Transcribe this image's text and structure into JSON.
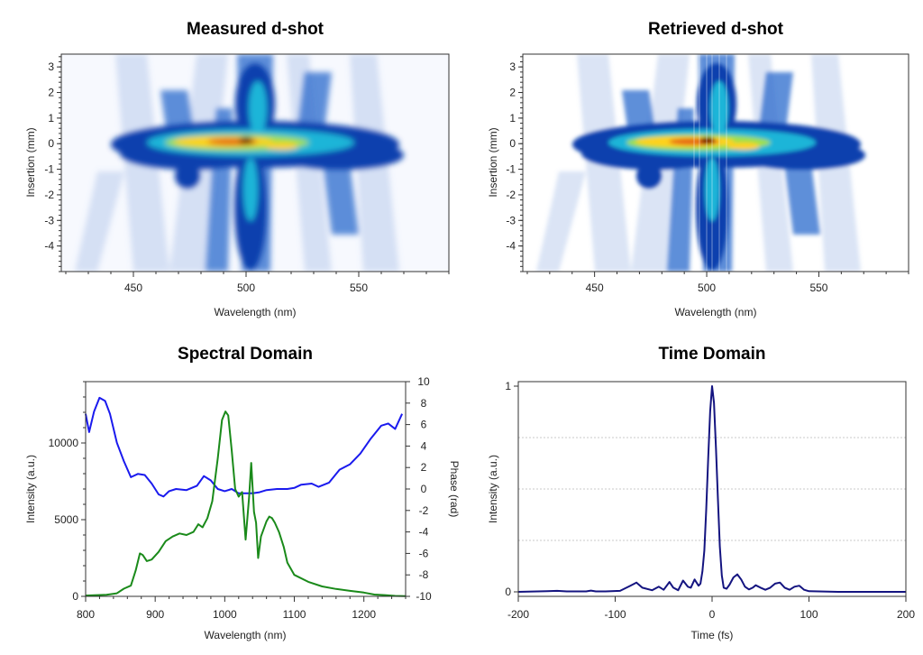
{
  "colors": {
    "retrieved_series": "#1a1aee",
    "measured_series": "#1a8a1a",
    "time_series": "#141480",
    "grid": "#c8c8c8",
    "heat_low": "#ffffff",
    "heat_mid": "#0a4db8",
    "heat_high": "#7a0000"
  },
  "chart_data": [
    {
      "id": "measured",
      "type": "heatmap",
      "title": "Measured d-shot",
      "xlabel": "Wavelength (nm)",
      "ylabel": "Insertion (mm)",
      "xlim": [
        418,
        590
      ],
      "ylim": [
        -5,
        3.5
      ],
      "xticks": [
        450,
        500,
        550
      ],
      "yticks": [
        -4,
        -3,
        -2,
        -1,
        0,
        1,
        2,
        3
      ],
      "colormap": "white-blue-cyan-yellow-red",
      "peak": {
        "x": 501,
        "y": 0.05
      }
    },
    {
      "id": "retrieved",
      "type": "heatmap",
      "title": "Retrieved d-shot",
      "xlabel": "Wavelength (nm)",
      "ylabel": "Insertion (mm)",
      "xlim": [
        418,
        590
      ],
      "ylim": [
        -5,
        3.5
      ],
      "xticks": [
        450,
        500,
        550
      ],
      "yticks": [
        -4,
        -3,
        -2,
        -1,
        0,
        1,
        2,
        3
      ],
      "colormap": "white-blue-cyan-yellow-red",
      "peak": {
        "x": 500,
        "y": 0.05
      }
    },
    {
      "id": "spectral",
      "type": "line",
      "title": "Spectral Domain",
      "xlabel": "Wavelength (nm)",
      "ylabel": "Intensity (a.u.)",
      "y2label": "Phase (rad)",
      "xlim": [
        800,
        1260
      ],
      "ylim": [
        0,
        14000
      ],
      "y2lim": [
        -10,
        10
      ],
      "xticks": [
        800,
        900,
        1000,
        1100,
        1200
      ],
      "yticks": [
        0,
        5000,
        10000
      ],
      "y2ticks": [
        -10,
        -8,
        -6,
        -4,
        -2,
        0,
        2,
        4,
        6,
        8,
        10
      ],
      "series": [
        {
          "name": "Phase",
          "axis": "right",
          "color_key": "retrieved_series",
          "x": [
            800,
            805,
            812,
            820,
            828,
            835,
            845,
            855,
            865,
            875,
            885,
            895,
            905,
            912,
            920,
            930,
            945,
            960,
            970,
            980,
            990,
            1000,
            1010,
            1020,
            1030,
            1040,
            1050,
            1060,
            1075,
            1090,
            1100,
            1110,
            1125,
            1135,
            1150,
            1165,
            1180,
            1195,
            1210,
            1225,
            1235,
            1245,
            1255
          ],
          "values": [
            7.0,
            5.3,
            7.2,
            8.5,
            8.2,
            7.0,
            4.3,
            2.6,
            1.1,
            1.4,
            1.3,
            0.5,
            -0.5,
            -0.7,
            -0.2,
            0.0,
            -0.1,
            0.3,
            1.2,
            0.8,
            0.0,
            -0.2,
            0.0,
            -0.4,
            -0.4,
            -0.4,
            -0.3,
            -0.1,
            0.0,
            0.0,
            0.1,
            0.4,
            0.5,
            0.2,
            0.6,
            1.8,
            2.3,
            3.3,
            4.7,
            5.9,
            6.1,
            5.6,
            7.0
          ]
        },
        {
          "name": "Intensity",
          "axis": "left",
          "color_key": "measured_series",
          "x": [
            800,
            830,
            845,
            855,
            865,
            872,
            878,
            882,
            888,
            895,
            905,
            915,
            925,
            935,
            945,
            955,
            962,
            968,
            975,
            982,
            990,
            996,
            1001,
            1005,
            1010,
            1015,
            1020,
            1025,
            1030,
            1035,
            1038,
            1042,
            1045,
            1048,
            1052,
            1056,
            1060,
            1064,
            1068,
            1072,
            1078,
            1085,
            1090,
            1100,
            1120,
            1140,
            1160,
            1180,
            1200,
            1215,
            1230,
            1245,
            1260
          ],
          "values": [
            50,
            100,
            200,
            500,
            700,
            1700,
            2800,
            2700,
            2300,
            2400,
            2900,
            3600,
            3900,
            4100,
            4000,
            4200,
            4700,
            4500,
            5100,
            6200,
            9000,
            11500,
            12050,
            11800,
            9500,
            7000,
            6500,
            6800,
            3700,
            6500,
            8700,
            5500,
            4800,
            2500,
            3900,
            4400,
            4900,
            5200,
            5100,
            4800,
            4200,
            3200,
            2200,
            1400,
            950,
            650,
            480,
            360,
            250,
            120,
            80,
            30,
            20
          ]
        }
      ]
    },
    {
      "id": "time",
      "type": "line",
      "title": "Time Domain",
      "xlabel": "Time (fs)",
      "ylabel": "Intensity (a.u.)",
      "xlim": [
        -200,
        200
      ],
      "ylim": [
        0,
        1
      ],
      "xticks": [
        -200,
        -100,
        0,
        100,
        200
      ],
      "yticks": [
        0,
        1
      ],
      "gridlines": [
        0.25,
        0.5,
        0.75
      ],
      "series": [
        {
          "name": "Intensity",
          "color_key": "time_series",
          "x": [
            -200,
            -170,
            -160,
            -150,
            -130,
            -125,
            -120,
            -110,
            -95,
            -85,
            -78,
            -72,
            -62,
            -55,
            -50,
            -44,
            -40,
            -35,
            -30,
            -25,
            -22,
            -18,
            -14,
            -12,
            -10,
            -8,
            -6,
            -4,
            -2,
            0,
            2,
            4,
            6,
            8,
            10,
            12,
            15,
            18,
            22,
            26,
            30,
            34,
            38,
            42,
            45,
            50,
            55,
            60,
            65,
            70,
            75,
            80,
            85,
            90,
            95,
            100,
            110,
            130,
            160,
            200
          ],
          "values": [
            0,
            0.003,
            0.005,
            0.002,
            0.002,
            0.006,
            0.002,
            0.002,
            0.005,
            0.028,
            0.045,
            0.02,
            0.008,
            0.025,
            0.01,
            0.048,
            0.02,
            0.008,
            0.055,
            0.025,
            0.02,
            0.06,
            0.03,
            0.04,
            0.1,
            0.2,
            0.4,
            0.65,
            0.88,
            1.0,
            0.92,
            0.7,
            0.45,
            0.22,
            0.08,
            0.02,
            0.015,
            0.035,
            0.07,
            0.085,
            0.06,
            0.025,
            0.012,
            0.02,
            0.032,
            0.02,
            0.01,
            0.02,
            0.04,
            0.045,
            0.02,
            0.01,
            0.025,
            0.03,
            0.01,
            0.003,
            0.002,
            0.0,
            0.0,
            0.0
          ]
        }
      ]
    }
  ]
}
